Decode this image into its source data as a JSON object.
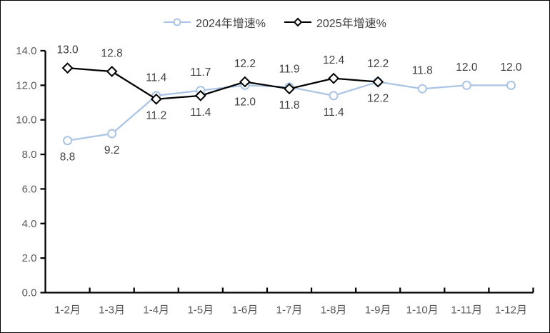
{
  "figure": {
    "background": "#FFFFFF",
    "border_color": "#000000"
  },
  "chart_data": {
    "type": "line",
    "title": "",
    "xlabel": "",
    "ylabel": "",
    "categories": [
      "1-2月",
      "1-3月",
      "1-4月",
      "1-5月",
      "1-6月",
      "1-7月",
      "1-8月",
      "1-9月",
      "1-10月",
      "1-11月",
      "1-12月"
    ],
    "series": [
      {
        "name": "2024年增速%",
        "color": "#A9C4E4",
        "marker": "circle",
        "values": [
          8.8,
          9.2,
          11.4,
          11.7,
          12.0,
          11.9,
          11.4,
          12.2,
          11.8,
          12.0,
          12.0
        ],
        "label_side": [
          "below",
          "below",
          "above",
          "above",
          "below",
          "above",
          "below",
          "below",
          "above",
          "above",
          "above"
        ]
      },
      {
        "name": "2025年增速%",
        "color": "#000000",
        "marker": "diamond",
        "values": [
          13.0,
          12.8,
          11.2,
          11.4,
          12.2,
          11.8,
          12.4,
          12.2
        ],
        "label_side": [
          "above",
          "above",
          "below",
          "below",
          "above",
          "below",
          "above",
          "above"
        ]
      }
    ],
    "ylim": [
      0,
      14
    ],
    "ytick_step": 2,
    "ytick_decimals": 1,
    "grid": false,
    "legend_position": "top",
    "data_label_color": "#404040",
    "axis_tick_label_color": "#595959",
    "axis_color": "#000000"
  }
}
